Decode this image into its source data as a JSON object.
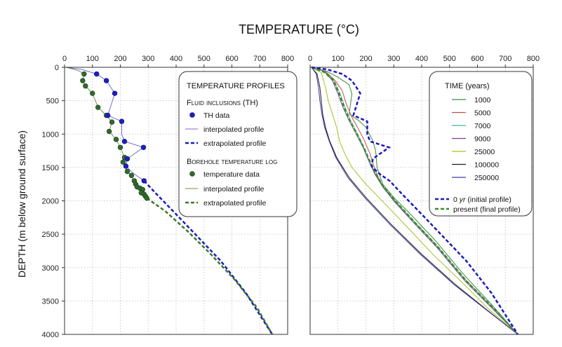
{
  "figure": {
    "title": "TEMPERATURE (°C)",
    "ylabel": "DEPTH (m below ground surface)"
  },
  "chart_data": [
    {
      "type": "line",
      "xlim": [
        0,
        800
      ],
      "ylim": [
        4000,
        0
      ],
      "x_ticks": [
        "0",
        "100",
        "200",
        "300",
        "400",
        "500",
        "600",
        "700",
        "800"
      ],
      "y_ticks": [
        "0",
        "500",
        "1000",
        "1500",
        "2000",
        "2500",
        "3000",
        "3500",
        "4000"
      ],
      "grid": true,
      "legend_position": "top-right",
      "legend": {
        "title": "TEMPERATURE PROFILES",
        "group1_title": "Fluid inclusions (TH)",
        "th_data": "TH data",
        "th_interp": "interpolated profile",
        "th_extrap": "extrapolated profile",
        "group2_title": "Borehole temperature log",
        "bh_data": "temperature data",
        "bh_interp": "interpolated profile",
        "bh_extrap": "extrapolated profile"
      },
      "th_points": [
        [
          115,
          100
        ],
        [
          150,
          200
        ],
        [
          180,
          390
        ],
        [
          155,
          720
        ],
        [
          205,
          810
        ],
        [
          215,
          1110
        ],
        [
          283,
          1200
        ],
        [
          225,
          1370
        ],
        [
          220,
          1480
        ],
        [
          285,
          1700
        ]
      ],
      "th_interpolated": [
        [
          5,
          0
        ],
        [
          60,
          30
        ],
        [
          115,
          100
        ],
        [
          150,
          200
        ],
        [
          180,
          390
        ],
        [
          155,
          720
        ],
        [
          205,
          810
        ],
        [
          205,
          1000
        ],
        [
          215,
          1110
        ],
        [
          283,
          1200
        ],
        [
          225,
          1370
        ],
        [
          220,
          1480
        ],
        [
          250,
          1600
        ],
        [
          285,
          1700
        ]
      ],
      "th_extrapolated": [
        [
          285,
          1700
        ],
        [
          330,
          1900
        ],
        [
          400,
          2200
        ],
        [
          480,
          2550
        ],
        [
          560,
          2900
        ],
        [
          650,
          3380
        ],
        [
          745,
          4000
        ]
      ],
      "bh_points": [
        [
          70,
          100
        ],
        [
          65,
          200
        ],
        [
          75,
          280
        ],
        [
          100,
          390
        ],
        [
          120,
          600
        ],
        [
          150,
          720
        ],
        [
          170,
          820
        ],
        [
          160,
          960
        ],
        [
          185,
          1080
        ],
        [
          200,
          1200
        ],
        [
          215,
          1350
        ],
        [
          210,
          1420
        ],
        [
          225,
          1560
        ],
        [
          240,
          1620
        ],
        [
          250,
          1700
        ],
        [
          255,
          1750
        ],
        [
          260,
          1790
        ],
        [
          270,
          1810
        ],
        [
          280,
          1830
        ],
        [
          275,
          1880
        ],
        [
          285,
          1900
        ],
        [
          290,
          1930
        ],
        [
          295,
          1960
        ]
      ],
      "bh_interpolated": [
        [
          5,
          0
        ],
        [
          50,
          50
        ],
        [
          70,
          100
        ],
        [
          65,
          200
        ],
        [
          75,
          280
        ],
        [
          100,
          390
        ],
        [
          120,
          600
        ],
        [
          150,
          720
        ],
        [
          170,
          820
        ],
        [
          160,
          960
        ],
        [
          185,
          1080
        ],
        [
          200,
          1200
        ],
        [
          215,
          1350
        ],
        [
          210,
          1420
        ],
        [
          225,
          1560
        ],
        [
          240,
          1620
        ],
        [
          250,
          1700
        ],
        [
          260,
          1790
        ],
        [
          280,
          1830
        ],
        [
          295,
          1960
        ]
      ],
      "bh_extrapolated": [
        [
          295,
          1960
        ],
        [
          360,
          2150
        ],
        [
          440,
          2450
        ],
        [
          520,
          2780
        ],
        [
          610,
          3180
        ],
        [
          690,
          3600
        ],
        [
          745,
          4000
        ]
      ]
    },
    {
      "type": "line",
      "xlim": [
        0,
        800
      ],
      "ylim": [
        4000,
        0
      ],
      "x_ticks": [
        "0",
        "100",
        "200",
        "300",
        "400",
        "500",
        "600",
        "700",
        "800"
      ],
      "grid": true,
      "legend_position": "top-right",
      "legend": {
        "title": "TIME (years)",
        "initial": "0 yr (initial profile)",
        "initial_italic": "yr",
        "final": "present (final profile)"
      },
      "series": [
        {
          "name": "1000",
          "color": "#3a8c3a",
          "values": [
            [
              5,
              0
            ],
            [
              60,
              60
            ],
            [
              100,
              150
            ],
            [
              140,
              260
            ],
            [
              150,
              400
            ],
            [
              140,
              700
            ],
            [
              175,
              800
            ],
            [
              200,
              900
            ],
            [
              225,
              1100
            ],
            [
              235,
              1250
            ],
            [
              240,
              1500
            ],
            [
              260,
              1750
            ],
            [
              300,
              1950
            ],
            [
              360,
              2200
            ],
            [
              450,
              2600
            ],
            [
              550,
              3100
            ],
            [
              650,
              3550
            ],
            [
              745,
              4000
            ]
          ]
        },
        {
          "name": "5000",
          "color": "#c0504d",
          "values": [
            [
              5,
              0
            ],
            [
              55,
              60
            ],
            [
              90,
              200
            ],
            [
              115,
              350
            ],
            [
              130,
              550
            ],
            [
              150,
              750
            ],
            [
              170,
              900
            ],
            [
              195,
              1100
            ],
            [
              215,
              1300
            ],
            [
              230,
              1500
            ],
            [
              255,
              1750
            ],
            [
              290,
              1950
            ],
            [
              360,
              2250
            ],
            [
              450,
              2650
            ],
            [
              550,
              3150
            ],
            [
              650,
              3580
            ],
            [
              745,
              4000
            ]
          ]
        },
        {
          "name": "7000",
          "color": "#45b39d",
          "values": [
            [
              5,
              0
            ],
            [
              52,
              60
            ],
            [
              85,
              200
            ],
            [
              108,
              400
            ],
            [
              125,
              600
            ],
            [
              145,
              800
            ],
            [
              170,
              1000
            ],
            [
              192,
              1200
            ],
            [
              212,
              1400
            ],
            [
              235,
              1600
            ],
            [
              265,
              1800
            ],
            [
              305,
              2000
            ],
            [
              370,
              2300
            ],
            [
              460,
              2700
            ],
            [
              560,
              3200
            ],
            [
              660,
              3620
            ],
            [
              745,
              4000
            ]
          ]
        },
        {
          "name": "9000",
          "color": "#7b3f99",
          "values": [
            [
              5,
              0
            ],
            [
              50,
              60
            ],
            [
              80,
              200
            ],
            [
              100,
              400
            ],
            [
              118,
              600
            ],
            [
              140,
              800
            ],
            [
              165,
              1000
            ],
            [
              190,
              1200
            ],
            [
              210,
              1400
            ],
            [
              232,
              1600
            ],
            [
              262,
              1800
            ],
            [
              300,
              2000
            ],
            [
              365,
              2300
            ],
            [
              455,
              2700
            ],
            [
              555,
              3200
            ],
            [
              655,
              3620
            ],
            [
              745,
              4000
            ]
          ]
        },
        {
          "name": "25000",
          "color": "#a6c020",
          "values": [
            [
              5,
              0
            ],
            [
              40,
              80
            ],
            [
              55,
              300
            ],
            [
              65,
              500
            ],
            [
              80,
              700
            ],
            [
              95,
              900
            ],
            [
              105,
              1100
            ],
            [
              125,
              1300
            ],
            [
              150,
              1500
            ],
            [
              200,
              1750
            ],
            [
              270,
              2050
            ],
            [
              350,
              2400
            ],
            [
              440,
              2800
            ],
            [
              540,
              3200
            ],
            [
              640,
              3620
            ],
            [
              745,
              4000
            ]
          ]
        },
        {
          "name": "100000",
          "color": "#1a1a1a",
          "values": [
            [
              5,
              0
            ],
            [
              25,
              100
            ],
            [
              35,
              300
            ],
            [
              40,
              500
            ],
            [
              45,
              700
            ],
            [
              55,
              900
            ],
            [
              70,
              1100
            ],
            [
              95,
              1350
            ],
            [
              140,
              1650
            ],
            [
              200,
              1950
            ],
            [
              290,
              2350
            ],
            [
              400,
              2800
            ],
            [
              520,
              3250
            ],
            [
              630,
              3620
            ],
            [
              745,
              4000
            ]
          ]
        },
        {
          "name": "250000",
          "color": "#3c3ca8",
          "values": [
            [
              5,
              0
            ],
            [
              22,
              100
            ],
            [
              30,
              300
            ],
            [
              35,
              500
            ],
            [
              42,
              700
            ],
            [
              52,
              900
            ],
            [
              68,
              1100
            ],
            [
              92,
              1350
            ],
            [
              135,
              1650
            ],
            [
              195,
              1950
            ],
            [
              285,
              2350
            ],
            [
              395,
              2800
            ],
            [
              515,
              3250
            ],
            [
              628,
              3620
            ],
            [
              745,
              4000
            ]
          ]
        }
      ],
      "initial_profile": [
        [
          5,
          0
        ],
        [
          60,
          30
        ],
        [
          115,
          100
        ],
        [
          150,
          200
        ],
        [
          180,
          390
        ],
        [
          155,
          720
        ],
        [
          205,
          810
        ],
        [
          205,
          1000
        ],
        [
          215,
          1110
        ],
        [
          283,
          1200
        ],
        [
          225,
          1370
        ],
        [
          220,
          1480
        ],
        [
          250,
          1600
        ],
        [
          285,
          1700
        ],
        [
          330,
          1900
        ],
        [
          400,
          2200
        ],
        [
          480,
          2550
        ],
        [
          560,
          2900
        ],
        [
          650,
          3380
        ],
        [
          745,
          4000
        ]
      ],
      "final_profile": [
        [
          5,
          0
        ],
        [
          50,
          70
        ],
        [
          85,
          200
        ],
        [
          105,
          400
        ],
        [
          122,
          600
        ],
        [
          143,
          800
        ],
        [
          168,
          1000
        ],
        [
          192,
          1200
        ],
        [
          213,
          1400
        ],
        [
          235,
          1600
        ],
        [
          265,
          1800
        ],
        [
          305,
          2000
        ],
        [
          370,
          2300
        ],
        [
          460,
          2700
        ],
        [
          560,
          3200
        ],
        [
          660,
          3620
        ],
        [
          745,
          4000
        ]
      ]
    }
  ]
}
